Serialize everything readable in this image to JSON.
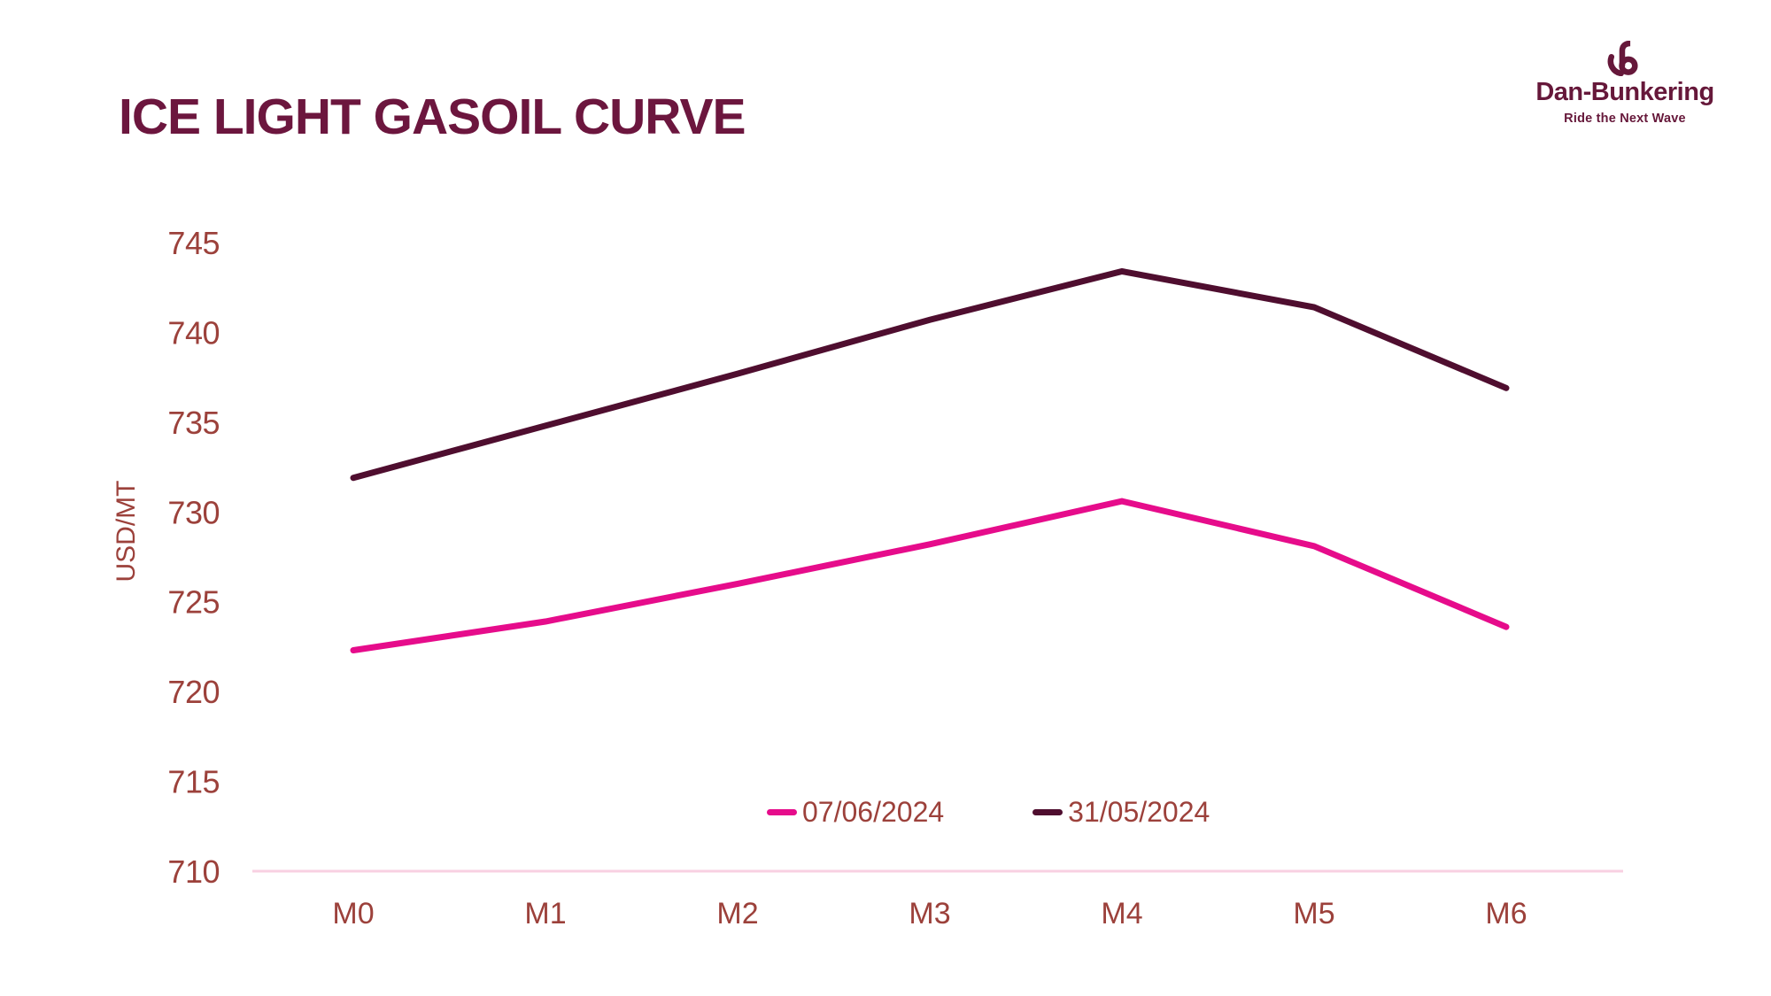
{
  "branding": {
    "name": "Dan-Bunkering",
    "tagline": "Ride the Next Wave",
    "color": "#66183A"
  },
  "chart_data": {
    "type": "line",
    "title": "ICE LIGHT GASOIL CURVE",
    "xlabel": "",
    "ylabel": "USD/MT",
    "categories": [
      "M0",
      "M1",
      "M2",
      "M3",
      "M4",
      "M5",
      "M6"
    ],
    "series": [
      {
        "name": "07/06/2024",
        "color": "#E60C8B",
        "values": [
          722.3,
          723.9,
          726.0,
          728.2,
          730.6,
          728.1,
          723.6
        ]
      },
      {
        "name": "31/05/2024",
        "color": "#4F0E2F",
        "values": [
          731.9,
          734.8,
          737.7,
          740.7,
          743.4,
          741.4,
          736.9
        ]
      }
    ],
    "ylim": [
      710,
      745
    ],
    "yticks": [
      710,
      715,
      720,
      725,
      730,
      735,
      740,
      745
    ],
    "grid": false,
    "legend_position": "bottom-center",
    "title_color": "#6C163E",
    "tick_label_color": "#9C413B",
    "axis_line_color": "#F8D0E2"
  }
}
